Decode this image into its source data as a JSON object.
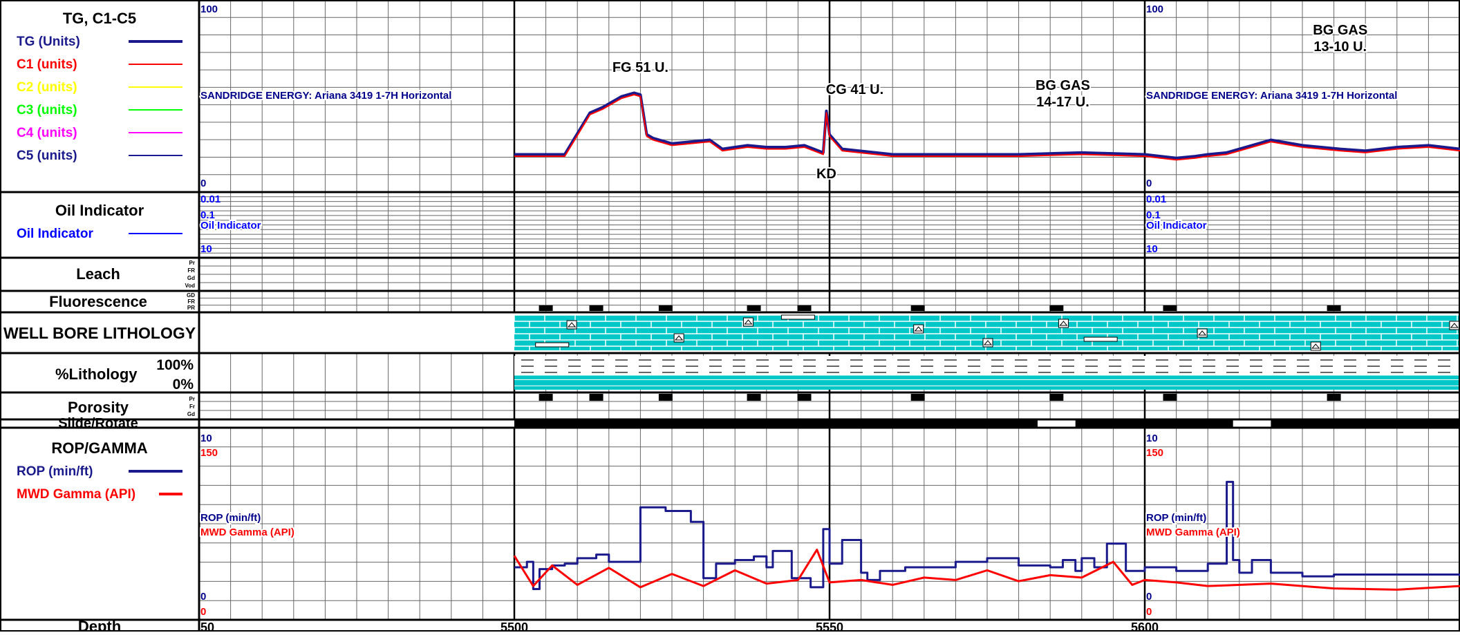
{
  "panels": {
    "gas": {
      "title": "TG, C1-C5",
      "legend": [
        {
          "label": "TG (Units)",
          "color": "#1a1a8c",
          "thick": true
        },
        {
          "label": "C1 (units)",
          "color": "#ff0000",
          "thick": false
        },
        {
          "label": "C2 (units)",
          "color": "#ffff00",
          "thick": false
        },
        {
          "label": "C3 (units)",
          "color": "#00ff00",
          "thick": false
        },
        {
          "label": "C4 (units)",
          "color": "#ff00ff",
          "thick": false
        },
        {
          "label": "C5 (units)",
          "color": "#1a1a8c",
          "thick": false
        }
      ],
      "scale_max": "100",
      "scale_min": "0",
      "well_label": "SANDRIDGE ENERGY:  Ariana 3419 1-7H Horizontal"
    },
    "oil": {
      "title": "Oil Indicator",
      "legend": [
        {
          "label": "Oil Indicator",
          "color": "#0000ff"
        }
      ],
      "scale_top": "0.01",
      "scale_mid": "0.1",
      "scale_bottom": "10",
      "curve_label": "Oil Indicator"
    },
    "leach": {
      "title": "Leach",
      "codes": [
        "Pr",
        "FR",
        "Gd",
        "Vod"
      ]
    },
    "fluorescence": {
      "title": "Fluorescence",
      "codes": [
        "GD",
        "FR",
        "PR"
      ]
    },
    "lithology": {
      "title": "WELL BORE LITHOLOGY"
    },
    "pct_lithology": {
      "title": "%Lithology",
      "top": "100%",
      "bottom": "0%"
    },
    "porosity": {
      "title": "Porosity",
      "codes": [
        "Pr",
        "Fr",
        "Gd"
      ]
    },
    "slide": {
      "title": "Slide/Rotate"
    },
    "rop": {
      "title": "ROP/GAMMA",
      "legend": [
        {
          "label": "ROP (min/ft)",
          "color": "#1a1a8c"
        },
        {
          "label": "MWD Gamma (API)",
          "color": "#ff0000"
        }
      ],
      "rop_max": "10",
      "gamma_max": "150",
      "rop_min": "0",
      "gamma_min": "0",
      "rop_label": "ROP (min/ft)",
      "gamma_label": "MWD Gamma (API)"
    },
    "depth": {
      "title": "Depth"
    }
  },
  "annotations": [
    {
      "text": [
        "FG 51 U."
      ],
      "depth": 5520
    },
    {
      "text": [
        "CG 41 U."
      ],
      "depth": 5554
    },
    {
      "text": [
        "BG GAS",
        "14-17 U."
      ],
      "depth": 5587
    },
    {
      "text": [
        "BG GAS",
        "13-10 U."
      ],
      "depth": 5631
    },
    {
      "text": [
        "KD"
      ],
      "depth": 5549.5
    }
  ],
  "colors": {
    "grid": "#666666",
    "major": "#000000",
    "limestone": "#00c8c8",
    "tg": "#1a1a8c",
    "c1": "#ff0000",
    "rop": "#1a1a8c",
    "gamma": "#ff0000",
    "scale_blue": "#00008b"
  },
  "chart_data": {
    "type": "line",
    "x_axis": {
      "label": "Depth",
      "ticks": [
        "50",
        "5500",
        "5550",
        "5600"
      ]
    },
    "depth_range": [
      5450,
      5650
    ],
    "data_start": 5500,
    "gas": {
      "ylim": [
        0,
        100
      ],
      "series": [
        {
          "name": "TG (Units)",
          "x": [
            5500,
            5505,
            5508,
            5512,
            5514,
            5517,
            5519,
            5520,
            5521,
            5522,
            5525,
            5528,
            5531,
            5533,
            5537,
            5540,
            5543,
            5546,
            5549,
            5549.5,
            5550,
            5552,
            5560,
            5570,
            5580,
            5590,
            5600,
            5605,
            5608,
            5610,
            5613,
            5620,
            5625,
            5628,
            5631,
            5635,
            5640,
            5645,
            5650
          ],
          "y": [
            17,
            17,
            17,
            40,
            43,
            49,
            51,
            50,
            28,
            26,
            23,
            24,
            25,
            20,
            22,
            21,
            21,
            22,
            18,
            41,
            28,
            20,
            17,
            17,
            17,
            18,
            17,
            15,
            16,
            17,
            18,
            25,
            22,
            21,
            20,
            19,
            21,
            22,
            20
          ]
        },
        {
          "name": "C1 (units)",
          "x": [
            5500,
            5505,
            5508,
            5512,
            5514,
            5517,
            5519,
            5520,
            5521,
            5522,
            5525,
            5528,
            5531,
            5533,
            5537,
            5540,
            5543,
            5546,
            5549,
            5549.5,
            5550,
            5552,
            5560,
            5570,
            5580,
            5590,
            5600,
            5605,
            5608,
            5610,
            5613,
            5620,
            5625,
            5628,
            5631,
            5635,
            5640,
            5645,
            5650
          ],
          "y": [
            16,
            16,
            16,
            39,
            42,
            48,
            50,
            49,
            27,
            25,
            22,
            23,
            24,
            19,
            21,
            20,
            20,
            21,
            17,
            40,
            27,
            19,
            16,
            16,
            16,
            17,
            16,
            14,
            15,
            16,
            17,
            24,
            21,
            20,
            19,
            18,
            20,
            21,
            19
          ]
        }
      ]
    },
    "rop": {
      "ylim": [
        0,
        10
      ],
      "series": [
        {
          "name": "ROP (min/ft)",
          "x": [
            5500,
            5502,
            5503,
            5504,
            5506,
            5508,
            5510,
            5513,
            5515,
            5520,
            5524,
            5528,
            5530,
            5532,
            5535,
            5538,
            5540,
            5541,
            5544,
            5547,
            5549,
            5550,
            5552,
            5555,
            5556,
            5558,
            5562,
            5570,
            5575,
            5580,
            5585,
            5587,
            5589,
            5590,
            5592,
            5594,
            5597,
            5600,
            5605,
            5610,
            5613,
            5614,
            5615,
            5617,
            5620,
            5625,
            5630,
            5640,
            5650
          ],
          "y": [
            2.7,
            3,
            1.5,
            2.6,
            2.8,
            2.9,
            3.2,
            3.4,
            3,
            6,
            5.8,
            5.2,
            2.1,
            2.9,
            3.1,
            3.3,
            2.7,
            3.6,
            2.1,
            1.6,
            4.8,
            2.9,
            4.2,
            2.4,
            2,
            2.5,
            2.7,
            3,
            3.2,
            2.8,
            2.7,
            3.1,
            2.5,
            3.2,
            2.7,
            4,
            2.5,
            2.7,
            2.5,
            2.9,
            7.4,
            3.1,
            2.4,
            3.1,
            2.4,
            2.2,
            2.3,
            2.3,
            2.2
          ]
        },
        {
          "name": "MWD Gamma (API)",
          "x": [
            5500,
            5503,
            5506,
            5510,
            5515,
            5520,
            5525,
            5530,
            5535,
            5540,
            5545,
            5548,
            5550,
            5555,
            5560,
            5565,
            5570,
            5575,
            5580,
            5585,
            5590,
            5595,
            5598,
            5600,
            5605,
            5610,
            5620,
            5630,
            5640,
            5650
          ],
          "y": [
            50,
            25,
            42,
            26,
            40,
            24,
            35,
            25,
            38,
            27,
            30,
            55,
            28,
            30,
            26,
            32,
            30,
            38,
            29,
            34,
            32,
            45,
            26,
            30,
            28,
            25,
            27,
            23,
            22,
            25
          ]
        }
      ]
    }
  }
}
